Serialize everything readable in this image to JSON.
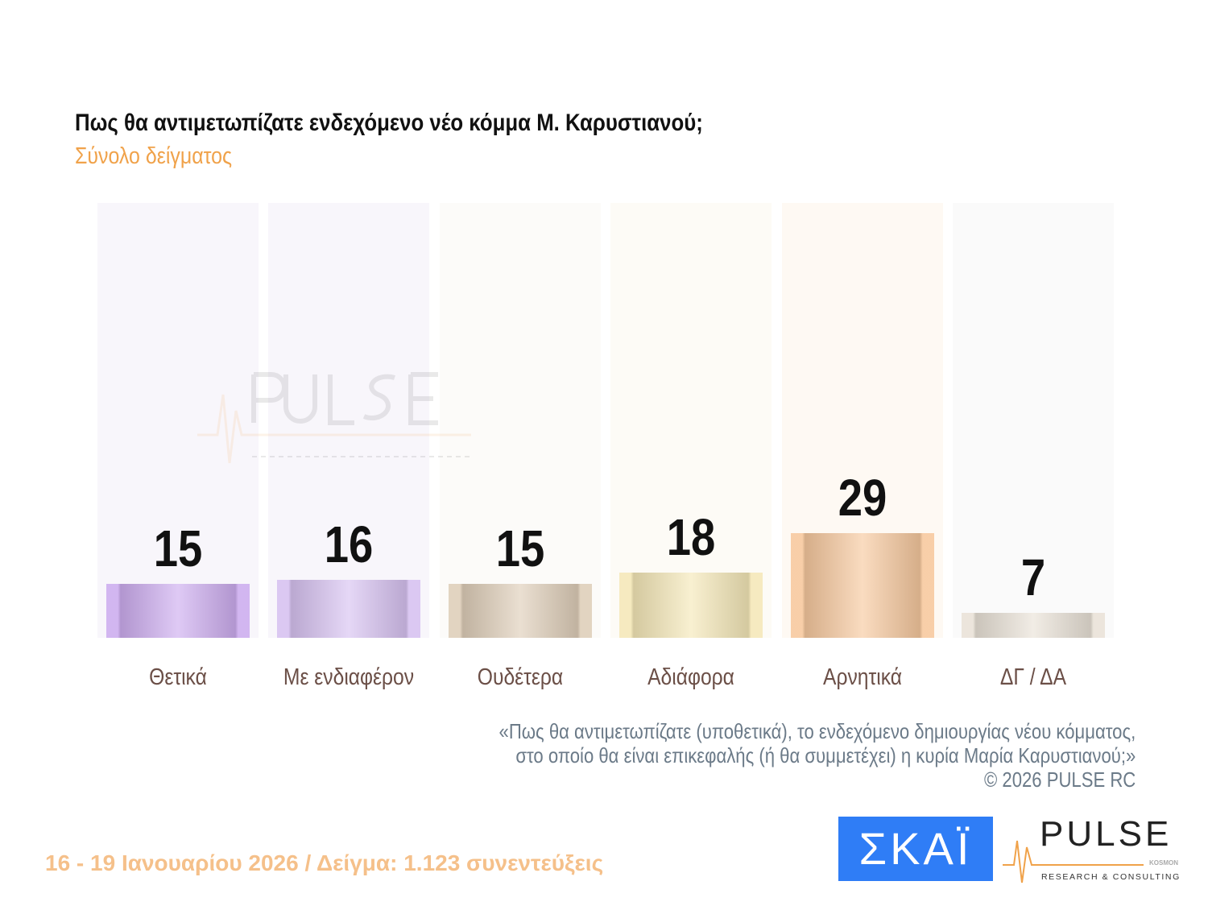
{
  "title": "Πως θα αντιμετωπίζατε ενδεχόμενο νέο κόμμα Μ. Καρυστιανού;",
  "subtitle": "Σύνολο δείγματος",
  "chart_data": {
    "type": "bar",
    "categories": [
      "Θετικά",
      "Με ενδιαφέρον",
      "Ουδέτερα",
      "Αδιάφορα",
      "Αρνητικά",
      "ΔΓ / ΔΑ"
    ],
    "values": [
      15,
      16,
      15,
      18,
      29,
      7
    ],
    "colors": [
      "#c9a6ee",
      "#d4bdf0",
      "#dccab3",
      "#f4e6b2",
      "#f6c496",
      "#e8e0d4"
    ],
    "ylim": [
      0,
      120
    ],
    "grid": false,
    "legend": "none",
    "data_labels": true
  },
  "note": {
    "line1": "«Πως θα αντιμετωπίζατε (υποθετικά), το ενδεχόμενο δημιουργίας νέου κόμματος,",
    "line2": "στο οποίο θα είναι επικεφαλής (ή θα συμμετέχει) η κυρία Μαρία Καρυστιανού;»",
    "copyright": "©  2026  PULSE RC"
  },
  "footer": "16 - 19 Ιανουαρίου 2026  /  Δείγμα:  1.123 συνεντεύξεις",
  "logos": {
    "skai": "ΣΚΑΪ",
    "pulse": "PULSE",
    "pulse_sub": "RESEARCH & CONSULTING",
    "pulse_kosmon": "KOSMON"
  }
}
